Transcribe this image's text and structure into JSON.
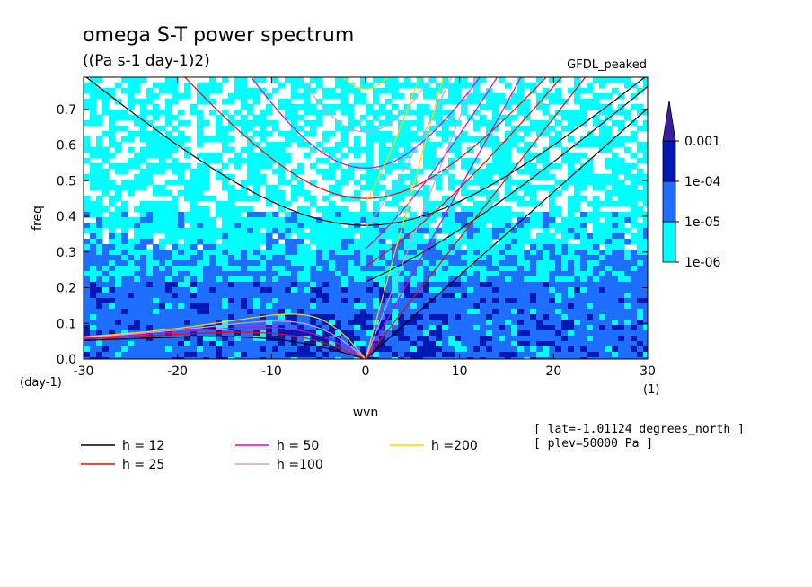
{
  "chart_data": {
    "type": "heatmap",
    "title": "omega S-T power spectrum",
    "subtitle": "((Pa s-1 day-1)2)",
    "dataset_label": "GFDL_peaked",
    "xlabel": "wvn",
    "ylabel": "freq",
    "x_unit_label": "(1)",
    "y_unit_label": "(day-1)",
    "xlim": [
      -30,
      30
    ],
    "ylim": [
      0,
      0.79
    ],
    "x_ticks": [
      -30,
      -20,
      -10,
      0,
      10,
      20,
      30
    ],
    "x_tick_labels": [
      "-30",
      "-20",
      "-10",
      "0",
      "10",
      "20",
      "30"
    ],
    "y_ticks": [
      0.0,
      0.1,
      0.2,
      0.3,
      0.4,
      0.5,
      0.6,
      0.7
    ],
    "y_tick_labels": [
      "0.0",
      "0.1",
      "0.2",
      "0.3",
      "0.4",
      "0.5",
      "0.6",
      "0.7"
    ],
    "colorbar": {
      "levels": [
        "1e-06",
        "1e-05",
        "1e-04",
        "0.001"
      ],
      "colors": [
        "#00ffff",
        "#1e6fff",
        "#0019b4",
        "#3c1e9f"
      ],
      "extend": "max"
    },
    "dispersion_curves": [
      {
        "name": "h = 12",
        "h": 12,
        "color": "#000000"
      },
      {
        "name": "h = 25",
        "h": 25,
        "color": "#ff0000"
      },
      {
        "name": "h = 50",
        "h": 50,
        "color": "#e600c8"
      },
      {
        "name": "h =100",
        "h": 100,
        "color": "#d79be1"
      },
      {
        "name": "h =200",
        "h": 200,
        "color": "#ffd700"
      }
    ],
    "annotations": [
      "[ lat=-1.01124 degrees_north ]",
      "[ plev=50000 Pa ]"
    ]
  }
}
